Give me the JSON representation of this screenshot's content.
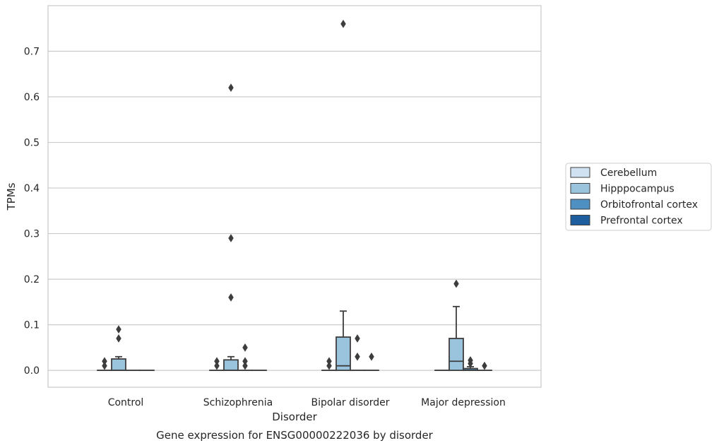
{
  "chart_data": {
    "type": "box",
    "title": "",
    "caption": "Gene expression for ENSG00000222036 by disorder",
    "xlabel": "Disorder",
    "ylabel": "TPMs",
    "ylim": [
      -0.037,
      0.8
    ],
    "yticks": [
      0.0,
      0.1,
      0.2,
      0.3,
      0.4,
      0.5,
      0.6,
      0.7
    ],
    "ytick_labels": [
      "0.0",
      "0.1",
      "0.2",
      "0.3",
      "0.4",
      "0.5",
      "0.6",
      "0.7"
    ],
    "grid": true,
    "legend_position": "right",
    "categories": [
      "Control",
      "Schizophrenia",
      "Bipolar disorder",
      "Major depression"
    ],
    "series": [
      {
        "name": "Cerebellum",
        "color": "#d0e1f2",
        "boxes": [
          {
            "q1": 0,
            "median": 0,
            "q3": 0,
            "whislo": 0,
            "whishi": 0,
            "fliers": [
              0.01,
              0.02
            ]
          },
          {
            "q1": 0,
            "median": 0,
            "q3": 0,
            "whislo": 0,
            "whishi": 0,
            "fliers": [
              0.01,
              0.02
            ]
          },
          {
            "q1": 0,
            "median": 0,
            "q3": 0,
            "whislo": 0,
            "whishi": 0,
            "fliers": [
              0.01,
              0.02
            ]
          },
          {
            "q1": 0,
            "median": 0,
            "q3": 0,
            "whislo": 0,
            "whishi": 0,
            "fliers": []
          }
        ]
      },
      {
        "name": "Hipppocampus",
        "color": "#9ac3de",
        "boxes": [
          {
            "q1": 0,
            "median": 0,
            "q3": 0.025,
            "whislo": 0,
            "whishi": 0.03,
            "fliers": [
              0.07,
              0.09
            ]
          },
          {
            "q1": 0,
            "median": 0,
            "q3": 0.023,
            "whislo": 0,
            "whishi": 0.03,
            "fliers": [
              0.16,
              0.29,
              0.62
            ]
          },
          {
            "q1": 0,
            "median": 0.01,
            "q3": 0.073,
            "whislo": 0,
            "whishi": 0.13,
            "fliers": [
              0.76
            ]
          },
          {
            "q1": 0,
            "median": 0.02,
            "q3": 0.07,
            "whislo": 0,
            "whishi": 0.14,
            "fliers": [
              0.19
            ]
          }
        ]
      },
      {
        "name": "Orbitofrontal cortex",
        "color": "#4e90c2",
        "boxes": [
          {
            "q1": 0,
            "median": 0,
            "q3": 0,
            "whislo": 0,
            "whishi": 0,
            "fliers": []
          },
          {
            "q1": 0,
            "median": 0,
            "q3": 0,
            "whislo": 0,
            "whishi": 0,
            "fliers": [
              0.01,
              0.02,
              0.05
            ]
          },
          {
            "q1": 0,
            "median": 0,
            "q3": 0,
            "whislo": 0,
            "whishi": 0,
            "fliers": [
              0.03,
              0.07
            ]
          },
          {
            "q1": 0,
            "median": 0,
            "q3": 0.004,
            "whislo": 0,
            "whishi": 0.008,
            "fliers": [
              0.015,
              0.022
            ]
          }
        ]
      },
      {
        "name": "Prefrontal cortex",
        "color": "#1f5e9e",
        "boxes": [
          {
            "q1": 0,
            "median": 0,
            "q3": 0,
            "whislo": 0,
            "whishi": 0,
            "fliers": []
          },
          {
            "q1": 0,
            "median": 0,
            "q3": 0,
            "whislo": 0,
            "whishi": 0,
            "fliers": []
          },
          {
            "q1": 0,
            "median": 0,
            "q3": 0,
            "whislo": 0,
            "whishi": 0,
            "fliers": [
              0.03
            ]
          },
          {
            "q1": 0,
            "median": 0,
            "q3": 0,
            "whislo": 0,
            "whishi": 0,
            "fliers": [
              0.01
            ]
          }
        ]
      }
    ]
  },
  "colors": {
    "grid": "#cccccc",
    "frame": "#cccccc",
    "box_edge": "#3d3d3d",
    "legend_border": "#cccccc"
  }
}
